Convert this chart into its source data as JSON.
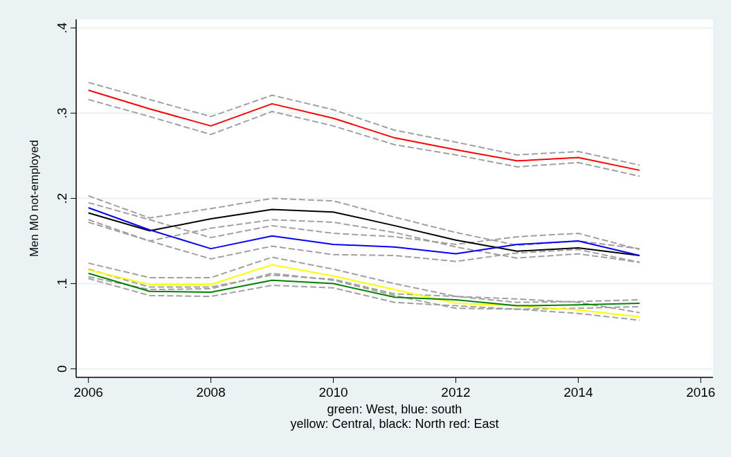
{
  "chart_data": {
    "type": "line",
    "ylabel": "Men M0 not-employed",
    "x": [
      2006,
      2007,
      2008,
      2009,
      2010,
      2011,
      2012,
      2013,
      2014,
      2015
    ],
    "xlim": [
      2005.8,
      2016.2
    ],
    "xticks": [
      2006,
      2008,
      2010,
      2012,
      2014,
      2016
    ],
    "ylim": [
      -0.01,
      0.41
    ],
    "yticks": [
      0,
      {
        "value": 0.1,
        "label": ".1"
      },
      {
        "value": 0.2,
        "label": ".2"
      },
      {
        "value": 0.3,
        "label": ".3"
      },
      {
        "value": 0.4,
        "label": ".4"
      }
    ],
    "grid": "y",
    "line_style": "solid",
    "series": [
      {
        "color": "#a0a0a0",
        "line_style": "dashed",
        "values": [
          0.336,
          0.316,
          0.296,
          0.321,
          0.304,
          0.28,
          0.266,
          0.251,
          0.255,
          0.239
        ]
      },
      {
        "color": "#a0a0a0",
        "line_style": "dashed",
        "values": [
          0.316,
          0.296,
          0.275,
          0.302,
          0.285,
          0.263,
          0.251,
          0.237,
          0.242,
          0.226
        ]
      },
      {
        "color": "#a0a0a0",
        "line_style": "dashed",
        "values": [
          0.203,
          0.177,
          0.188,
          0.2,
          0.197,
          0.178,
          0.16,
          0.145,
          0.15,
          0.141
        ]
      },
      {
        "color": "#a0a0a0",
        "line_style": "dashed",
        "values": [
          0.175,
          0.15,
          0.165,
          0.175,
          0.172,
          0.16,
          0.143,
          0.13,
          0.135,
          0.125
        ]
      },
      {
        "color": "#a0a0a0",
        "line_style": "dashed",
        "values": [
          0.195,
          0.175,
          0.154,
          0.168,
          0.159,
          0.155,
          0.146,
          0.155,
          0.159,
          0.14
        ]
      },
      {
        "color": "#a0a0a0",
        "line_style": "dashed",
        "values": [
          0.172,
          0.15,
          0.129,
          0.144,
          0.134,
          0.133,
          0.126,
          0.136,
          0.14,
          0.125
        ]
      },
      {
        "color": "#a0a0a0",
        "line_style": "dashed",
        "values": [
          0.124,
          0.107,
          0.107,
          0.131,
          0.117,
          0.1,
          0.085,
          0.082,
          0.078,
          0.066
        ]
      },
      {
        "color": "#a0a0a0",
        "line_style": "dashed",
        "values": [
          0.108,
          0.093,
          0.094,
          0.112,
          0.104,
          0.086,
          0.071,
          0.07,
          0.065,
          0.057
        ]
      },
      {
        "color": "#a0a0a0",
        "line_style": "dashed",
        "values": [
          0.117,
          0.096,
          0.096,
          0.11,
          0.105,
          0.088,
          0.085,
          0.078,
          0.079,
          0.081
        ]
      },
      {
        "color": "#a0a0a0",
        "line_style": "dashed",
        "values": [
          0.106,
          0.086,
          0.085,
          0.098,
          0.095,
          0.078,
          0.074,
          0.07,
          0.071,
          0.073
        ]
      },
      {
        "color": "#ff0000",
        "values": [
          0.327,
          0.305,
          0.285,
          0.311,
          0.294,
          0.271,
          0.257,
          0.244,
          0.248,
          0.233
        ]
      },
      {
        "color": "#000000",
        "values": [
          0.183,
          0.162,
          0.176,
          0.187,
          0.184,
          0.168,
          0.151,
          0.138,
          0.142,
          0.133
        ]
      },
      {
        "color": "#0000ff",
        "values": [
          0.189,
          0.163,
          0.141,
          0.156,
          0.146,
          0.143,
          0.135,
          0.146,
          0.15,
          0.133
        ]
      },
      {
        "color": "#ffff00",
        "values": [
          0.116,
          0.099,
          0.099,
          0.122,
          0.109,
          0.093,
          0.077,
          0.074,
          0.069,
          0.061
        ]
      },
      {
        "color": "#008000",
        "values": [
          0.112,
          0.091,
          0.09,
          0.104,
          0.1,
          0.084,
          0.081,
          0.074,
          0.075,
          0.077
        ]
      }
    ],
    "annotations": [
      "green: West, blue: south",
      "yellow: Central, black: North red: East"
    ]
  }
}
